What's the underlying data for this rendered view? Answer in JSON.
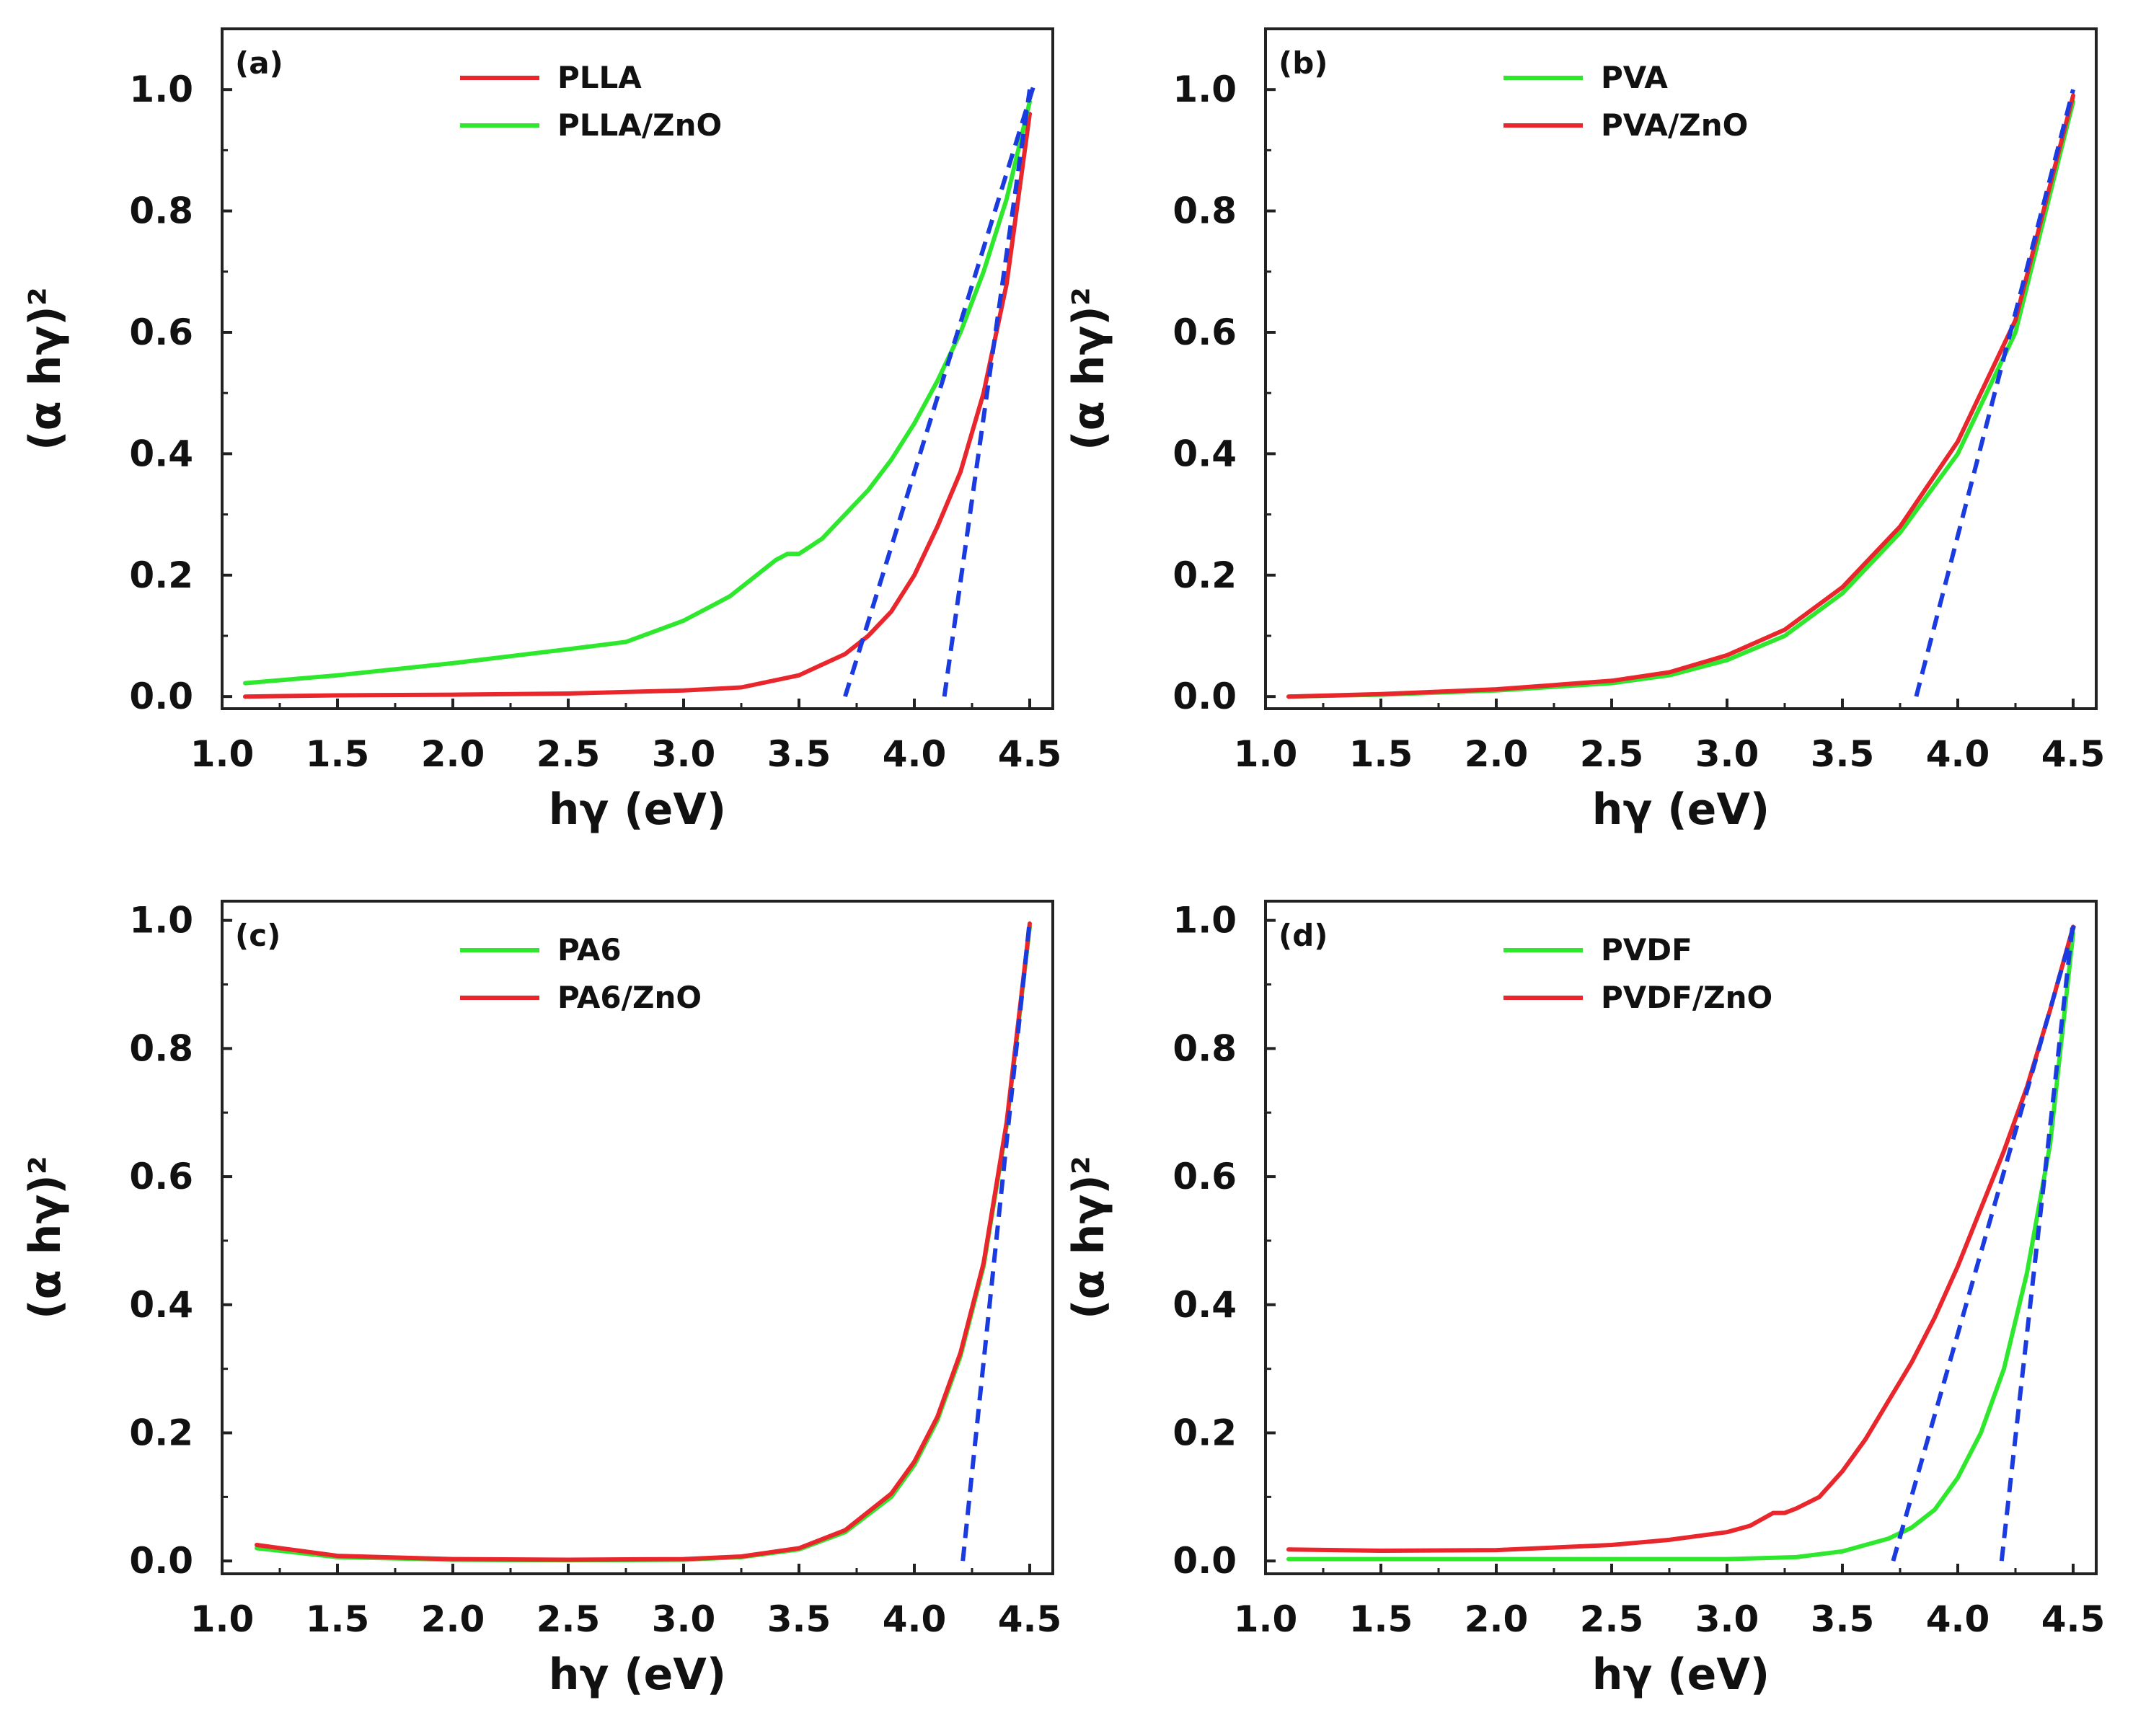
{
  "chart_data": [
    {
      "type": "line",
      "panel_label": "(a)",
      "xlabel": "hγ  (eV)",
      "ylabel": "(α hγ)²",
      "xlim": [
        1.0,
        4.6
      ],
      "ylim": [
        -0.02,
        1.1
      ],
      "xticks": [
        "1.0",
        "1.5",
        "2.0",
        "2.5",
        "3.0",
        "3.5",
        "4.0",
        "4.5"
      ],
      "yticks": [
        "0.0",
        "0.2",
        "0.4",
        "0.6",
        "0.8",
        "1.0"
      ],
      "legend_position": "top-center",
      "series": [
        {
          "name": "PLLA",
          "color": "#e8262b",
          "x": [
            1.1,
            1.5,
            2.0,
            2.5,
            3.0,
            3.25,
            3.5,
            3.7,
            3.8,
            3.9,
            4.0,
            4.1,
            4.2,
            4.3,
            4.4,
            4.5
          ],
          "y": [
            0.0,
            0.002,
            0.003,
            0.005,
            0.01,
            0.015,
            0.035,
            0.07,
            0.1,
            0.14,
            0.2,
            0.28,
            0.37,
            0.5,
            0.68,
            0.96
          ]
        },
        {
          "name": "PLLA/ZnO",
          "color": "#2ee82e",
          "x": [
            1.1,
            1.5,
            2.0,
            2.5,
            2.75,
            3.0,
            3.1,
            3.2,
            3.3,
            3.4,
            3.45,
            3.5,
            3.6,
            3.7,
            3.8,
            3.9,
            4.0,
            4.1,
            4.2,
            4.3,
            4.4,
            4.5
          ],
          "y": [
            0.022,
            0.035,
            0.055,
            0.078,
            0.09,
            0.125,
            0.145,
            0.165,
            0.195,
            0.225,
            0.235,
            0.235,
            0.26,
            0.3,
            0.34,
            0.39,
            0.45,
            0.52,
            0.6,
            0.7,
            0.82,
            0.98
          ]
        }
      ],
      "fit_lines": [
        {
          "x": [
            3.7,
            4.52
          ],
          "y": [
            0.0,
            1.01
          ]
        },
        {
          "x": [
            4.13,
            4.5
          ],
          "y": [
            0.0,
            1.0
          ]
        }
      ]
    },
    {
      "type": "line",
      "panel_label": "(b)",
      "xlabel": "hγ  (eV)",
      "ylabel": "(α hγ)²",
      "xlim": [
        1.0,
        4.6
      ],
      "ylim": [
        -0.02,
        1.1
      ],
      "xticks": [
        "1.0",
        "1.5",
        "2.0",
        "2.5",
        "3.0",
        "3.5",
        "4.0",
        "4.5"
      ],
      "yticks": [
        "0.0",
        "0.2",
        "0.4",
        "0.6",
        "0.8",
        "1.0"
      ],
      "legend_position": "top-center",
      "series": [
        {
          "name": "PVA",
          "color": "#2ee82e",
          "x": [
            1.1,
            1.5,
            2.0,
            2.5,
            2.75,
            3.0,
            3.25,
            3.5,
            3.75,
            4.0,
            4.25,
            4.5
          ],
          "y": [
            0.0,
            0.003,
            0.01,
            0.022,
            0.035,
            0.06,
            0.1,
            0.17,
            0.27,
            0.4,
            0.6,
            0.98
          ]
        },
        {
          "name": "PVA/ZnO",
          "color": "#e8262b",
          "x": [
            1.1,
            1.5,
            2.0,
            2.5,
            2.75,
            3.0,
            3.25,
            3.5,
            3.75,
            4.0,
            4.25,
            4.5
          ],
          "y": [
            0.0,
            0.004,
            0.012,
            0.026,
            0.04,
            0.068,
            0.11,
            0.18,
            0.28,
            0.42,
            0.62,
            0.99
          ]
        }
      ],
      "fit_lines": [
        {
          "x": [
            3.82,
            4.5
          ],
          "y": [
            0.0,
            1.0
          ]
        }
      ]
    },
    {
      "type": "line",
      "panel_label": "(c)",
      "xlabel": "hγ  (eV)",
      "ylabel": "(α hγ)²",
      "xlim": [
        1.0,
        4.6
      ],
      "ylim": [
        -0.02,
        1.03
      ],
      "xticks": [
        "1.0",
        "1.5",
        "2.0",
        "2.5",
        "3.0",
        "3.5",
        "4.0",
        "4.5"
      ],
      "yticks": [
        "0.0",
        "0.2",
        "0.4",
        "0.6",
        "0.8",
        "1.0"
      ],
      "legend_position": "top-center",
      "series": [
        {
          "name": "PA6",
          "color": "#2ee82e",
          "x": [
            1.15,
            1.5,
            2.0,
            2.5,
            3.0,
            3.25,
            3.5,
            3.7,
            3.9,
            4.0,
            4.1,
            4.2,
            4.3,
            4.4,
            4.5
          ],
          "y": [
            0.02,
            0.006,
            0.002,
            0.001,
            0.002,
            0.006,
            0.018,
            0.045,
            0.1,
            0.15,
            0.22,
            0.32,
            0.46,
            0.68,
            0.99
          ]
        },
        {
          "name": "PA6/ZnO",
          "color": "#e8262b",
          "x": [
            1.15,
            1.5,
            2.0,
            2.5,
            3.0,
            3.25,
            3.5,
            3.7,
            3.9,
            4.0,
            4.1,
            4.2,
            4.3,
            4.4,
            4.5
          ],
          "y": [
            0.025,
            0.008,
            0.003,
            0.002,
            0.003,
            0.007,
            0.02,
            0.048,
            0.105,
            0.155,
            0.225,
            0.325,
            0.465,
            0.685,
            0.995
          ]
        }
      ],
      "fit_lines": [
        {
          "x": [
            4.21,
            4.5
          ],
          "y": [
            0.0,
            1.0
          ]
        }
      ]
    },
    {
      "type": "line",
      "panel_label": "(d)",
      "xlabel": "hγ  (eV)",
      "ylabel": "(α hγ)²",
      "xlim": [
        1.0,
        4.6
      ],
      "ylim": [
        -0.02,
        1.03
      ],
      "xticks": [
        "1.0",
        "1.5",
        "2.0",
        "2.5",
        "3.0",
        "3.5",
        "4.0",
        "4.5"
      ],
      "yticks": [
        "0.0",
        "0.2",
        "0.4",
        "0.6",
        "0.8",
        "1.0"
      ],
      "legend_position": "top-center",
      "series": [
        {
          "name": "PVDF",
          "color": "#2ee82e",
          "x": [
            1.1,
            1.5,
            2.0,
            2.5,
            3.0,
            3.3,
            3.5,
            3.7,
            3.8,
            3.9,
            4.0,
            4.1,
            4.2,
            4.3,
            4.4,
            4.5
          ],
          "y": [
            0.003,
            0.003,
            0.003,
            0.003,
            0.003,
            0.006,
            0.015,
            0.035,
            0.052,
            0.08,
            0.13,
            0.2,
            0.3,
            0.45,
            0.65,
            0.98
          ]
        },
        {
          "name": "PVDF/ZnO",
          "color": "#e8262b",
          "x": [
            1.1,
            1.5,
            2.0,
            2.5,
            2.75,
            3.0,
            3.1,
            3.2,
            3.25,
            3.3,
            3.4,
            3.5,
            3.6,
            3.7,
            3.8,
            3.9,
            4.0,
            4.1,
            4.2,
            4.3,
            4.4,
            4.5
          ],
          "y": [
            0.018,
            0.016,
            0.017,
            0.025,
            0.033,
            0.045,
            0.055,
            0.075,
            0.075,
            0.082,
            0.1,
            0.14,
            0.19,
            0.25,
            0.31,
            0.38,
            0.46,
            0.55,
            0.64,
            0.74,
            0.86,
            0.99
          ]
        }
      ],
      "fit_lines": [
        {
          "x": [
            3.72,
            4.51
          ],
          "y": [
            0.0,
            1.0
          ]
        },
        {
          "x": [
            4.19,
            4.5
          ],
          "y": [
            0.0,
            1.0
          ]
        }
      ]
    }
  ]
}
